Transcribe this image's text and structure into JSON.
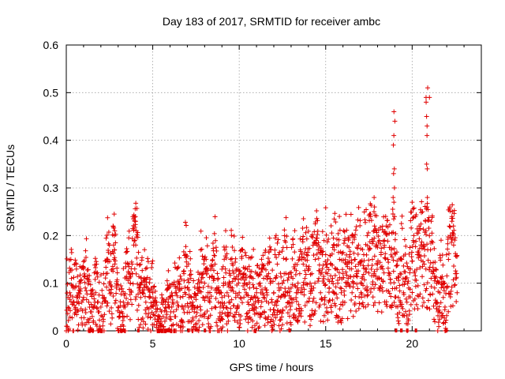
{
  "chart_data": {
    "type": "scatter",
    "title": "Day 183 of 2017, SRMTID for receiver ambc",
    "xlabel": "GPS time / hours",
    "ylabel": "SRMTID / TECUs",
    "xlim": [
      0,
      24
    ],
    "ylim": [
      0,
      0.6
    ],
    "grid": true,
    "marker": "+",
    "color": "#e00000",
    "x_ticks": [
      0,
      5,
      10,
      15,
      20
    ],
    "y_ticks": [
      0,
      0.1,
      0.2,
      0.3,
      0.4,
      0.5,
      0.6
    ],
    "x_tick_labels": [
      "0",
      "5",
      "10",
      "15",
      "20"
    ],
    "y_tick_labels": [
      "0",
      "0.1",
      "0.2",
      "0.3",
      "0.4",
      "0.5",
      "0.6"
    ],
    "data_gaps_at_zero": [
      [
        1.25,
        1.6
      ],
      [
        1.9,
        2.1
      ],
      [
        3.1,
        3.4
      ],
      [
        5.35,
        5.6
      ],
      [
        5.7,
        6.05
      ],
      [
        4.1,
        4.2
      ],
      [
        7.0,
        7.1
      ],
      [
        7.95,
        8.05
      ],
      [
        10.85,
        10.95
      ],
      [
        12.85,
        12.95
      ],
      [
        19.0,
        19.1
      ],
      [
        19.3,
        19.45
      ],
      [
        19.65,
        19.75
      ],
      [
        20.15,
        20.25
      ],
      [
        21.9,
        22.05
      ]
    ],
    "x": [
      0.1,
      0.2,
      0.3,
      0.4,
      0.5,
      0.6,
      0.7,
      0.8,
      0.9,
      1.0,
      1.1,
      1.2,
      1.3,
      1.4,
      1.5,
      1.6,
      1.7,
      1.8,
      1.9,
      2.0,
      2.1,
      2.2,
      2.3,
      2.4,
      2.5,
      2.6,
      2.7,
      2.8,
      2.9,
      3.0,
      3.1,
      3.2,
      3.3,
      3.4,
      3.5,
      3.6,
      3.7,
      3.8,
      3.9,
      4.0,
      4.1,
      4.2,
      4.3,
      4.4,
      4.5,
      4.6,
      4.7,
      4.8,
      4.9,
      5.0,
      5.1,
      5.2,
      5.3,
      5.4,
      5.5,
      5.6,
      5.7,
      5.8,
      5.9,
      6.0,
      6.1,
      6.2,
      6.3,
      6.4,
      6.5,
      6.6,
      6.7,
      6.8,
      6.9,
      7.0,
      7.1,
      7.2,
      7.3,
      7.4,
      7.5,
      7.6,
      7.7,
      7.8,
      7.9,
      8.0,
      8.1,
      8.2,
      8.3,
      8.4,
      8.5,
      8.6,
      8.7,
      8.8,
      8.9,
      9.0,
      9.1,
      9.2,
      9.3,
      9.4,
      9.5,
      9.6,
      9.7,
      9.8,
      9.9,
      10.0,
      10.1,
      10.2,
      10.3,
      10.4,
      10.5,
      10.6,
      10.7,
      10.8,
      10.9,
      11.0,
      11.1,
      11.2,
      11.3,
      11.4,
      11.5,
      11.6,
      11.7,
      11.8,
      11.9,
      12.0,
      12.1,
      12.2,
      12.3,
      12.4,
      12.5,
      12.6,
      12.7,
      12.8,
      12.9,
      13.0,
      13.1,
      13.2,
      13.3,
      13.4,
      13.5,
      13.6,
      13.7,
      13.8,
      13.9,
      14.0,
      14.1,
      14.2,
      14.3,
      14.4,
      14.5,
      14.6,
      14.7,
      14.8,
      14.9,
      15.0,
      15.1,
      15.2,
      15.3,
      15.4,
      15.5,
      15.6,
      15.7,
      15.8,
      15.9,
      16.0,
      16.1,
      16.2,
      16.3,
      16.4,
      16.5,
      16.6,
      16.7,
      16.8,
      16.9,
      17.0,
      17.1,
      17.2,
      17.3,
      17.4,
      17.5,
      17.6,
      17.7,
      17.8,
      17.9,
      18.0,
      18.1,
      18.2,
      18.3,
      18.4,
      18.5,
      18.6,
      18.7,
      18.8,
      18.9,
      19.0,
      19.1,
      19.2,
      19.3,
      19.4,
      19.5,
      19.6,
      19.7,
      19.8,
      19.9,
      20.0,
      20.1,
      20.2,
      20.3,
      20.4,
      20.5,
      20.6,
      20.7,
      20.8,
      20.9,
      21.0,
      21.1,
      21.2,
      21.3,
      21.4,
      21.5,
      21.6,
      21.7,
      21.8,
      21.9,
      22.0,
      22.1,
      22.2,
      22.3,
      22.4,
      22.5,
      22.6
    ],
    "y": [
      0.07,
      0.08,
      0.11,
      0.06,
      0.09,
      0.07,
      0.08,
      0.1,
      0.06,
      0.07,
      0.09,
      0.11,
      0.06,
      0.04,
      0.03,
      0.05,
      0.08,
      0.06,
      0.04,
      0.05,
      0.03,
      0.07,
      0.12,
      0.15,
      0.1,
      0.08,
      0.13,
      0.21,
      0.09,
      0.05,
      0.03,
      0.04,
      0.06,
      0.05,
      0.11,
      0.14,
      0.1,
      0.12,
      0.18,
      0.23,
      0.14,
      0.09,
      0.07,
      0.08,
      0.11,
      0.06,
      0.09,
      0.07,
      0.05,
      0.08,
      0.06,
      0.04,
      0.03,
      0.03,
      0.04,
      0.03,
      0.02,
      0.04,
      0.06,
      0.03,
      0.05,
      0.04,
      0.08,
      0.06,
      0.1,
      0.07,
      0.05,
      0.12,
      0.16,
      0.09,
      0.07,
      0.11,
      0.06,
      0.04,
      0.03,
      0.05,
      0.09,
      0.12,
      0.07,
      0.1,
      0.13,
      0.08,
      0.06,
      0.09,
      0.11,
      0.14,
      0.08,
      0.06,
      0.05,
      0.07,
      0.1,
      0.13,
      0.08,
      0.06,
      0.15,
      0.09,
      0.11,
      0.07,
      0.05,
      0.08,
      0.12,
      0.17,
      0.1,
      0.08,
      0.06,
      0.09,
      0.07,
      0.11,
      0.05,
      0.08,
      0.06,
      0.1,
      0.13,
      0.07,
      0.09,
      0.08,
      0.12,
      0.1,
      0.06,
      0.08,
      0.11,
      0.14,
      0.09,
      0.07,
      0.1,
      0.12,
      0.15,
      0.08,
      0.06,
      0.09,
      0.11,
      0.13,
      0.08,
      0.1,
      0.12,
      0.09,
      0.14,
      0.11,
      0.16,
      0.13,
      0.1,
      0.12,
      0.09,
      0.15,
      0.18,
      0.11,
      0.08,
      0.13,
      0.1,
      0.16,
      0.12,
      0.09,
      0.14,
      0.11,
      0.17,
      0.13,
      0.1,
      0.15,
      0.08,
      0.12,
      0.19,
      0.14,
      0.11,
      0.16,
      0.13,
      0.1,
      0.15,
      0.12,
      0.18,
      0.14,
      0.11,
      0.16,
      0.13,
      0.2,
      0.17,
      0.24,
      0.15,
      0.12,
      0.18,
      0.14,
      0.11,
      0.16,
      0.13,
      0.19,
      0.22,
      0.15,
      0.12,
      0.17,
      0.28,
      0.44,
      0.09,
      0.07,
      0.12,
      0.15,
      0.08,
      0.11,
      0.06,
      0.09,
      0.13,
      0.27,
      0.2,
      0.24,
      0.16,
      0.22,
      0.18,
      0.25,
      0.14,
      0.21,
      0.17,
      0.49,
      0.23,
      0.12,
      0.09,
      0.06,
      0.04,
      0.08,
      0.11,
      0.07,
      0.05,
      0.09,
      0.15,
      0.2,
      0.24,
      0.18,
      0.12,
      0.08
    ]
  }
}
